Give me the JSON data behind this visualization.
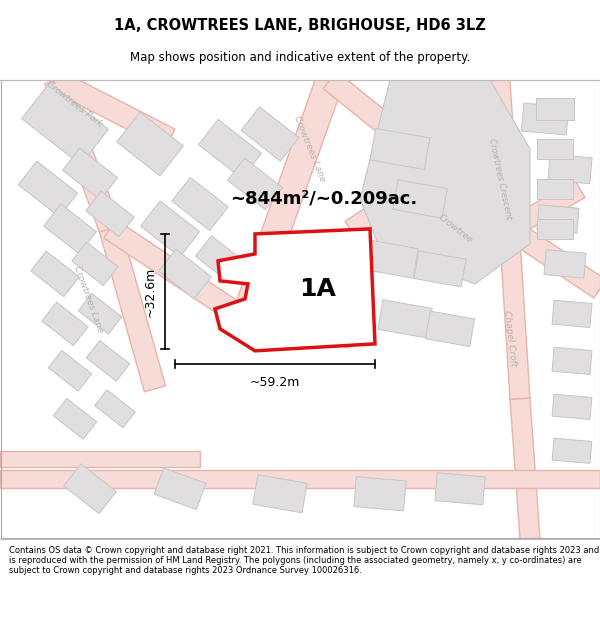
{
  "title": "1A, CROWTREES LANE, BRIGHOUSE, HD6 3LZ",
  "subtitle": "Map shows position and indicative extent of the property.",
  "footer": "Contains OS data © Crown copyright and database right 2021. This information is subject to Crown copyright and database rights 2023 and is reproduced with the permission of HM Land Registry. The polygons (including the associated geometry, namely x, y co-ordinates) are subject to Crown copyright and database rights 2023 Ordnance Survey 100026316.",
  "area_label": "~844m²/~0.209ac.",
  "plot_label": "1A",
  "dim_width": "~59.2m",
  "dim_height": "~32.6m",
  "bg_color": "#f2f0ed",
  "road_color": "#e8b4aa",
  "road_fill": "#f7dbd7",
  "building_color": "#e0dede",
  "building_edge": "#c8c4c4",
  "highlight_color": "#dd1111",
  "label_color": "#b8b0b0"
}
